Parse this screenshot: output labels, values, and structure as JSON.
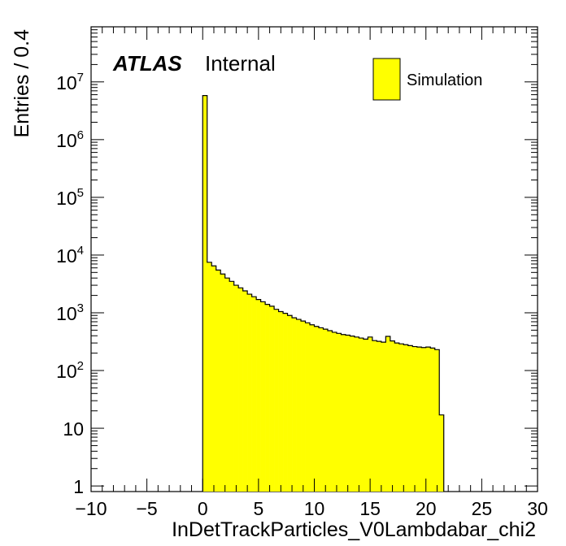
{
  "chart_data": {
    "type": "bar",
    "style": "histogram",
    "title": "",
    "xlabel": "InDetTrackParticles_V0Lambdabar_chi2",
    "ylabel": "Entries / 0.4",
    "xlim": [
      -10,
      30
    ],
    "ylim": [
      0.8,
      90000000
    ],
    "yscale": "log",
    "grid": false,
    "legend_position": "top-right",
    "bin_width": 0.4,
    "x_ticks": [
      -10,
      -5,
      0,
      5,
      10,
      15,
      20,
      25,
      30
    ],
    "x_tick_labels": [
      "−10",
      "−5",
      "0",
      "5",
      "10",
      "15",
      "20",
      "25",
      "30"
    ],
    "y_ticks": [
      {
        "value": 1,
        "base": "1",
        "exp": ""
      },
      {
        "value": 10,
        "base": "10",
        "exp": ""
      },
      {
        "value": 100,
        "base": "10",
        "exp": "2"
      },
      {
        "value": 1000,
        "base": "10",
        "exp": "3"
      },
      {
        "value": 10000,
        "base": "10",
        "exp": "4"
      },
      {
        "value": 100000,
        "base": "10",
        "exp": "5"
      },
      {
        "value": 1000000,
        "base": "10",
        "exp": "6"
      },
      {
        "value": 10000000,
        "base": "10",
        "exp": "7"
      }
    ],
    "series": [
      {
        "name": "Simulation",
        "color": "#ffff00",
        "edge_color": "#000000",
        "x_start": 0.0,
        "values": [
          5800000,
          7500,
          6500,
          5500,
          4700,
          4000,
          3500,
          3000,
          2700,
          2400,
          2100,
          1900,
          1700,
          1550,
          1400,
          1300,
          1150,
          1050,
          980,
          900,
          820,
          770,
          720,
          670,
          620,
          580,
          550,
          520,
          490,
          460,
          440,
          420,
          410,
          395,
          380,
          365,
          350,
          380,
          330,
          320,
          310,
          390,
          325,
          300,
          290,
          280,
          270,
          260,
          255,
          250,
          255,
          245,
          230,
          17
        ]
      }
    ]
  },
  "labels": {
    "atlas": "ATLAS",
    "internal": "Internal",
    "legend_entry": "Simulation"
  }
}
